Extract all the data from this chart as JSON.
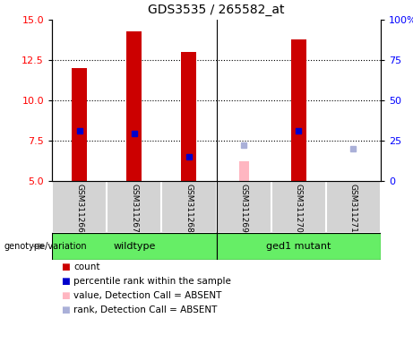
{
  "title": "GDS3535 / 265582_at",
  "samples": [
    "GSM311266",
    "GSM311267",
    "GSM311268",
    "GSM311269",
    "GSM311270",
    "GSM311271"
  ],
  "bar_base": 5.0,
  "ylim_left": [
    5,
    15
  ],
  "ylim_right": [
    0,
    100
  ],
  "yticks_left": [
    5,
    7.5,
    10,
    12.5,
    15
  ],
  "yticks_right": [
    0,
    25,
    50,
    75,
    100
  ],
  "count_values": [
    12.0,
    14.3,
    13.0,
    null,
    13.8,
    null
  ],
  "rank_values": [
    8.1,
    7.95,
    6.5,
    null,
    8.1,
    null
  ],
  "absent_value_values": [
    null,
    null,
    null,
    6.2,
    null,
    null
  ],
  "absent_rank_values": [
    null,
    null,
    null,
    7.2,
    null,
    7.0
  ],
  "bar_color": "#cc0000",
  "rank_color": "#0000cc",
  "absent_value_color": "#ffb6c1",
  "absent_rank_color": "#aab0d8",
  "bar_width": 0.28,
  "absent_bar_width": 0.18,
  "rank_marker_size": 4,
  "absent_rank_marker_size": 4,
  "grid_ticks": [
    7.5,
    10,
    12.5
  ],
  "legend_items": [
    {
      "color": "#cc0000",
      "label": "count"
    },
    {
      "color": "#0000cc",
      "label": "percentile rank within the sample"
    },
    {
      "color": "#ffb6c1",
      "label": "value, Detection Call = ABSENT"
    },
    {
      "color": "#aab0d8",
      "label": "rank, Detection Call = ABSENT"
    }
  ]
}
